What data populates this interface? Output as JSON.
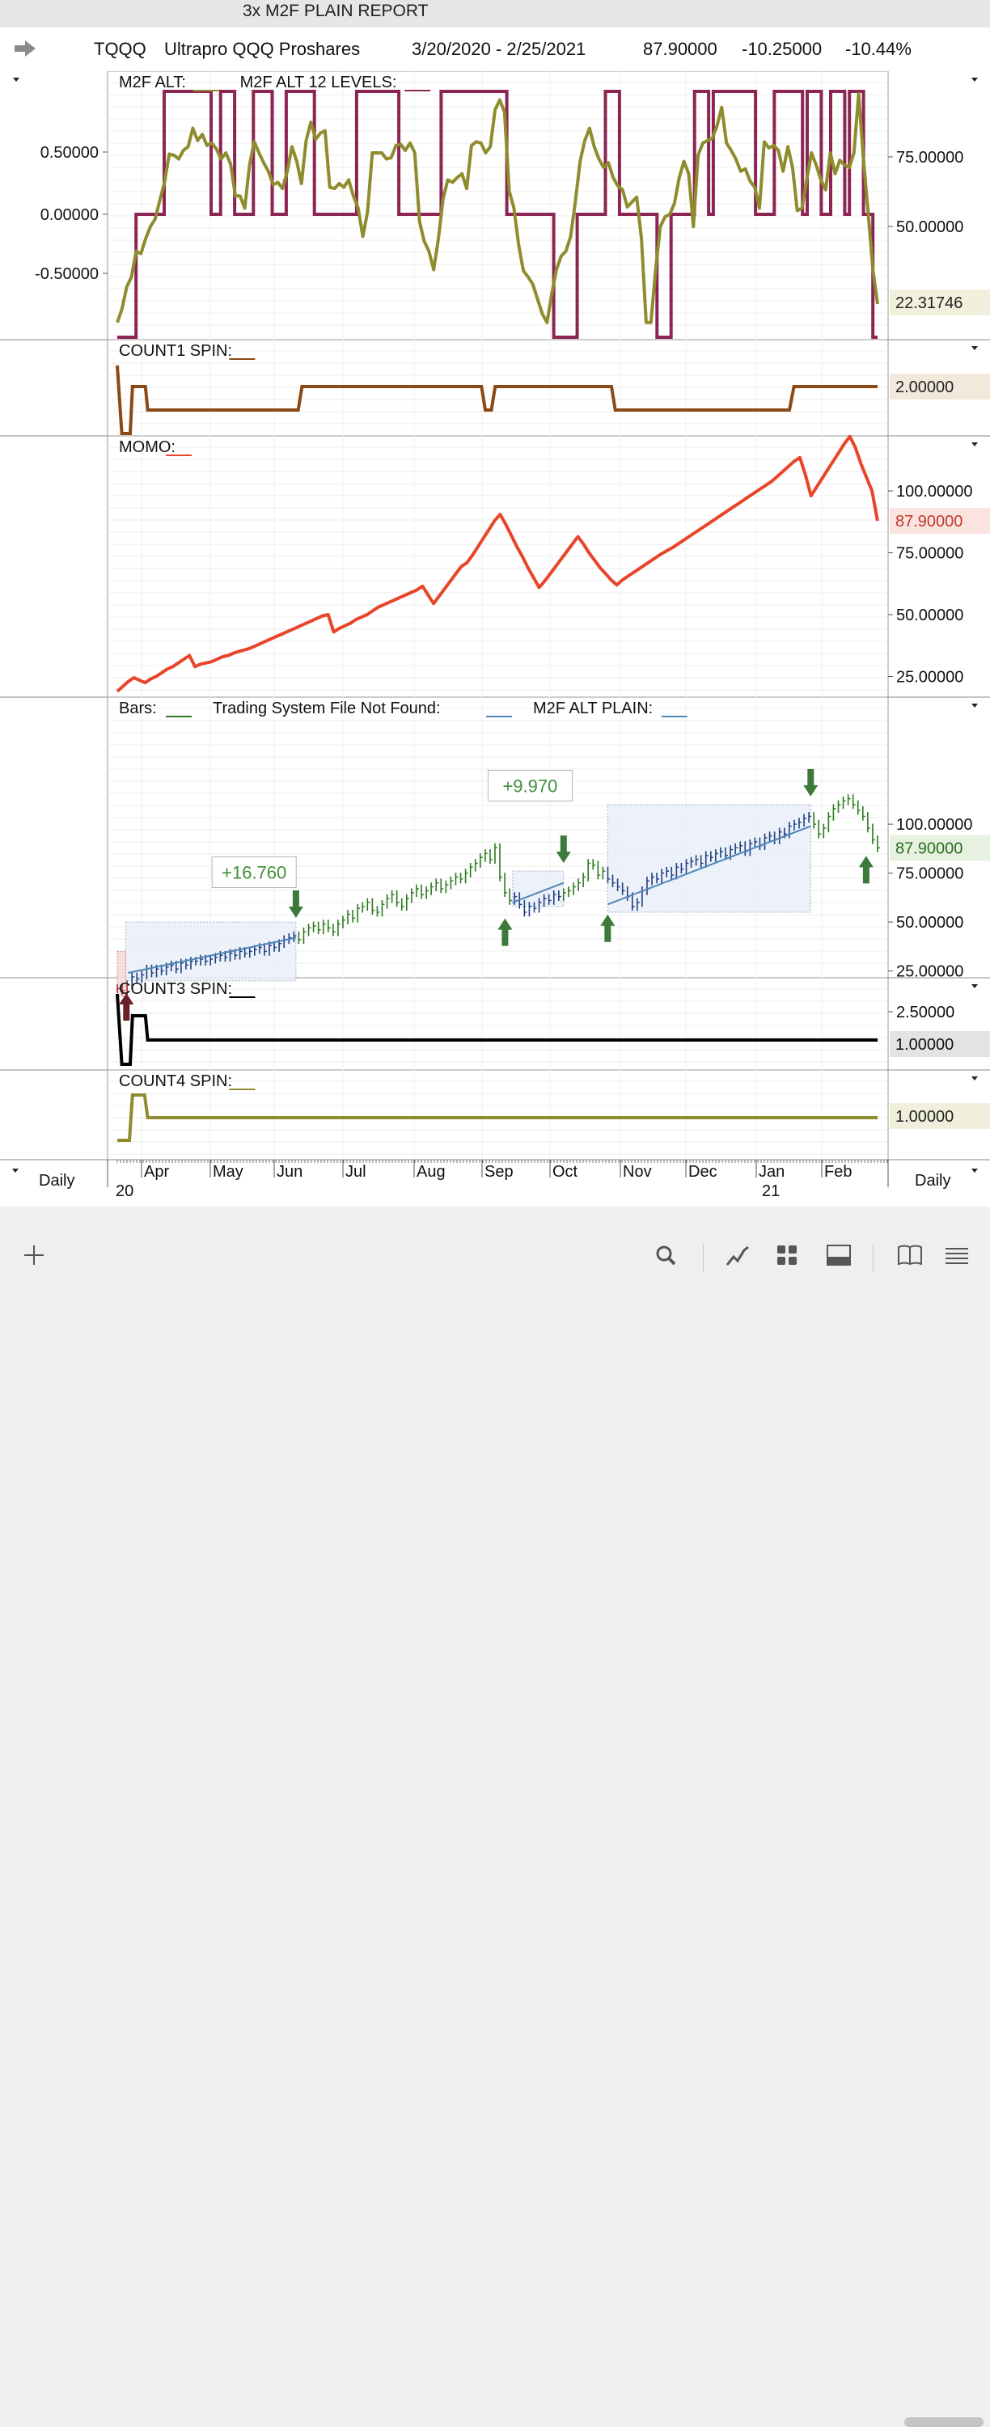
{
  "window_title": "3x M2F PLAIN REPORT",
  "header": {
    "symbol": "TQQQ",
    "name": "Ultrapro QQQ Proshares",
    "date_range": "3/20/2020 - 2/25/2021",
    "last": "87.90000",
    "change": "-10.25000",
    "change_pct": "-10.44%"
  },
  "colors": {
    "alt_olive": "#8f8c2e",
    "levels_maroon": "#8c2553",
    "count1_brown": "#8a4a17",
    "momo_red": "#e8452a",
    "bars_green": "#2c7a1f",
    "bars_blue": "#1f3f80",
    "plain_blue": "#4d86b8",
    "count3_black": "#000000",
    "count4_olive": "#8f8c2e",
    "signal_green": "#3d7a3a",
    "signal_maroon": "#6b1f26"
  },
  "bottom_bar": {
    "left_label": "Daily",
    "right_label": "Daily"
  },
  "toolbar_icons": [
    "add-icon",
    "search-icon",
    "line-chart-icon",
    "grid-icon",
    "panel-icon",
    "book-icon",
    "menu-icon"
  ],
  "chart_data": [
    {
      "type": "line",
      "panel": "M2F ALT",
      "legend": [
        {
          "label": "M2F ALT:",
          "color": "#8f8c2e"
        },
        {
          "label": "M2F ALT 12 LEVELS:",
          "color": "#8c2553"
        }
      ],
      "left_ticks": [
        "0.50000",
        "0.00000",
        "-0.50000"
      ],
      "right_ticks": [
        "75.00000",
        "50.00000"
      ],
      "last_value_label": "22.31746",
      "ylim": [
        -1,
        1
      ],
      "levels": [
        -1,
        -1,
        -1,
        -1,
        0,
        0,
        0,
        0,
        0,
        0,
        1,
        1,
        1,
        1,
        1,
        1,
        1,
        1,
        1,
        1,
        0,
        0,
        1,
        1,
        1,
        0,
        0,
        0,
        0,
        1,
        1,
        1,
        1,
        0,
        0,
        0,
        1,
        1,
        1,
        1,
        1,
        1,
        0,
        0,
        0,
        0,
        0,
        0,
        0,
        0,
        0,
        1,
        1,
        1,
        1,
        1,
        1,
        1,
        1,
        1,
        0,
        0,
        0,
        0,
        0,
        0,
        0,
        0,
        0,
        1,
        1,
        1,
        1,
        1,
        1,
        1,
        1,
        1,
        1,
        1,
        1,
        1,
        1,
        0,
        0,
        0,
        0,
        0,
        0,
        0,
        0,
        0,
        0,
        -1,
        -1,
        -1,
        -1,
        -1,
        0,
        0,
        0,
        0,
        0,
        0,
        1,
        1,
        1,
        0,
        0,
        0,
        0,
        0,
        0,
        0,
        0,
        -1,
        -1,
        -1,
        0,
        0,
        0,
        0,
        0,
        1,
        1,
        1,
        0,
        1,
        1,
        1,
        1,
        1,
        1,
        1,
        1,
        1,
        0,
        0,
        0,
        0,
        1,
        1,
        1,
        1,
        1,
        1,
        0,
        1,
        1,
        1,
        0,
        0,
        1,
        1,
        1,
        0,
        1,
        1,
        1,
        0,
        0,
        -1
      ],
      "values": [
        -0.88,
        -0.77,
        -0.59,
        -0.51,
        -0.3,
        -0.32,
        -0.2,
        -0.1,
        -0.04,
        0.11,
        0.26,
        0.49,
        0.48,
        0.45,
        0.52,
        0.55,
        0.7,
        0.6,
        0.65,
        0.56,
        0.58,
        0.53,
        0.45,
        0.5,
        0.41,
        0.15,
        0.15,
        0.05,
        0.4,
        0.59,
        0.5,
        0.42,
        0.35,
        0.24,
        0.26,
        0.21,
        0.35,
        0.55,
        0.43,
        0.25,
        0.6,
        0.75,
        0.61,
        0.66,
        0.68,
        0.22,
        0.21,
        0.25,
        0.22,
        0.28,
        0.15,
        0.05,
        -0.18,
        0.02,
        0.5,
        0.5,
        0.5,
        0.45,
        0.46,
        0.56,
        0.57,
        0.52,
        0.58,
        0.5,
        -0.06,
        -0.22,
        -0.3,
        -0.45,
        -0.2,
        0.13,
        0.28,
        0.26,
        0.3,
        0.33,
        0.21,
        0.56,
        0.59,
        0.58,
        0.5,
        0.55,
        0.85,
        0.93,
        0.83,
        0.19,
        0.05,
        -0.25,
        -0.46,
        -0.51,
        -0.57,
        -0.69,
        -0.81,
        -0.88,
        -0.65,
        -0.45,
        -0.34,
        -0.3,
        -0.18,
        0.1,
        0.43,
        0.6,
        0.7,
        0.55,
        0.45,
        0.38,
        0.42,
        0.3,
        0.23,
        0.2,
        0.06,
        0.1,
        0.14,
        -0.2,
        -0.88,
        -0.88,
        -0.45,
        -0.1,
        -0.02,
        0.0,
        0.09,
        0.3,
        0.43,
        0.33,
        -0.1,
        0.48,
        0.58,
        0.6,
        0.62,
        0.72,
        0.87,
        0.58,
        0.52,
        0.45,
        0.35,
        0.37,
        0.27,
        0.22,
        0.05,
        0.59,
        0.54,
        0.56,
        0.52,
        0.35,
        0.55,
        0.38,
        0.03,
        0.05,
        0.28,
        0.5,
        0.4,
        0.28,
        0.2,
        0.5,
        0.33,
        0.44,
        0.4,
        0.38,
        0.5,
        0.98,
        0.45,
        0.02,
        -0.45,
        -0.73
      ]
    },
    {
      "type": "line",
      "panel": "COUNT1 SPIN",
      "legend": [
        {
          "label": "COUNT1 SPIN:",
          "color": "#8a4a17"
        }
      ],
      "last_value_label": "2.00000",
      "ylim": [
        0,
        3
      ],
      "points": [
        [
          0,
          2.9
        ],
        [
          0.006,
          0
        ],
        [
          0.017,
          0
        ],
        [
          0.02,
          2
        ],
        [
          0.037,
          2
        ],
        [
          0.04,
          1
        ],
        [
          0.238,
          1
        ],
        [
          0.243,
          2
        ],
        [
          0.479,
          2
        ],
        [
          0.484,
          1
        ],
        [
          0.492,
          1
        ],
        [
          0.497,
          2
        ],
        [
          0.65,
          2
        ],
        [
          0.655,
          1
        ],
        [
          0.884,
          1
        ],
        [
          0.89,
          2
        ],
        [
          1,
          2
        ]
      ]
    },
    {
      "type": "line",
      "panel": "MOMO",
      "legend": [
        {
          "label": "MOMO:",
          "color": "#e8452a"
        }
      ],
      "right_ticks": [
        "100.00000",
        "75.00000",
        "50.00000",
        "25.00000"
      ],
      "last_value_label": "87.90000",
      "ylim": [
        17,
        127
      ],
      "values": [
        19,
        21,
        23,
        24.5,
        23.5,
        22.5,
        24,
        25,
        26.5,
        28,
        29,
        30.5,
        32,
        33.5,
        29,
        30,
        30.5,
        31,
        32,
        33,
        33.5,
        34.5,
        35.2,
        35.8,
        36.5,
        37.5,
        38.5,
        39.5,
        40.5,
        41.5,
        42.5,
        43.5,
        44.5,
        45.5,
        46.5,
        47.5,
        48.5,
        49.5,
        50,
        43,
        44.5,
        45.5,
        46.5,
        48,
        49,
        50,
        51.5,
        53,
        54,
        55,
        56,
        57,
        58,
        59,
        60,
        61.5,
        58,
        54.5,
        57.5,
        60.5,
        63.5,
        66.5,
        69.5,
        71,
        74,
        77.5,
        81,
        84.5,
        88,
        90.5,
        86.5,
        82,
        77.5,
        73.5,
        69,
        65,
        61,
        63.5,
        66.5,
        69.5,
        72.5,
        75.5,
        78.5,
        81.5,
        78.5,
        75,
        72,
        69,
        66.5,
        64,
        62,
        64,
        65.5,
        67,
        68.5,
        70,
        71.5,
        73,
        74.5,
        75.8,
        77,
        78.5,
        80,
        81.5,
        83,
        84.5,
        86,
        87.5,
        89,
        90.5,
        92,
        93.5,
        95,
        96.5,
        98,
        99.5,
        101,
        102.5,
        104,
        106,
        108,
        110,
        112,
        113.5,
        106.5,
        98,
        101.5,
        105,
        108.5,
        112,
        115.5,
        119,
        122,
        117.5,
        111,
        105.5,
        100,
        87.9
      ]
    },
    {
      "type": "bar",
      "panel": "Bars",
      "legend": [
        {
          "label": "Bars:",
          "color": "#2c7a1f"
        },
        {
          "label": "Trading System File Not Found:",
          "color": "#4d86b8"
        },
        {
          "label": "M2F ALT PLAIN:",
          "color": "#4d86b8"
        }
      ],
      "right_ticks": [
        "100.00000",
        "75.00000",
        "50.00000",
        "25.00000"
      ],
      "last_value_label": "87.90000",
      "ylim": [
        5,
        128
      ],
      "close": [
        16,
        15,
        18,
        22,
        21,
        23,
        26,
        24,
        26,
        25,
        27,
        28,
        26,
        29,
        28,
        30,
        30,
        31,
        30,
        31,
        32,
        33,
        32,
        34,
        33,
        35,
        34,
        35,
        36,
        37,
        35,
        38,
        37,
        39,
        41,
        42,
        43,
        41,
        45,
        47,
        48,
        46,
        49,
        47,
        45,
        49,
        51,
        54,
        52,
        57,
        58,
        60,
        56,
        55,
        59,
        62,
        64,
        60,
        58,
        62,
        65,
        67,
        64,
        66,
        68,
        70,
        67,
        69,
        71,
        73,
        72,
        75,
        78,
        80,
        83,
        85,
        82,
        88,
        73,
        65,
        61,
        63,
        59,
        55,
        58,
        57,
        60,
        62,
        61,
        64,
        63,
        65,
        66,
        68,
        70,
        73,
        80,
        79,
        74,
        76,
        72,
        70,
        68,
        66,
        63,
        58,
        60,
        66,
        71,
        73,
        72,
        75,
        76,
        74,
        78,
        77,
        80,
        81,
        82,
        80,
        84,
        83,
        85,
        86,
        84,
        87,
        88,
        89,
        86,
        90,
        91,
        89,
        93,
        94,
        92,
        96,
        95,
        99,
        100,
        101,
        103,
        104,
        100,
        95,
        98,
        104,
        108,
        110,
        112,
        113,
        110,
        107,
        104,
        98,
        92,
        87.9
      ],
      "trades": [
        {
          "label": "+16.760"
        },
        {
          "label": "+9.970"
        }
      ]
    },
    {
      "type": "line",
      "panel": "COUNT3 SPIN",
      "legend": [
        {
          "label": "COUNT3 SPIN:",
          "color": "#000000"
        }
      ],
      "right_ticks": [
        "2.50000"
      ],
      "last_value_label": "1.00000",
      "ylim": [
        0,
        3
      ],
      "points": [
        [
          0,
          2.9
        ],
        [
          0.006,
          0
        ],
        [
          0.017,
          0
        ],
        [
          0.02,
          2
        ],
        [
          0.037,
          2
        ],
        [
          0.04,
          1
        ],
        [
          1,
          1
        ]
      ]
    },
    {
      "type": "line",
      "panel": "COUNT4 SPIN",
      "legend": [
        {
          "label": "COUNT4 SPIN:",
          "color": "#8f8c2e"
        }
      ],
      "last_value_label": "1.00000",
      "ylim": [
        0,
        2.6
      ],
      "points": [
        [
          0,
          0
        ],
        [
          0.016,
          0
        ],
        [
          0.02,
          2
        ],
        [
          0.036,
          2
        ],
        [
          0.04,
          1
        ],
        [
          1,
          1
        ]
      ]
    }
  ],
  "x_axis": {
    "months": [
      "Apr",
      "May",
      "Jun",
      "Jul",
      "Aug",
      "Sep",
      "Oct",
      "Nov",
      "Dec",
      "Jan",
      "Feb"
    ],
    "years": [
      "20",
      "21"
    ]
  }
}
